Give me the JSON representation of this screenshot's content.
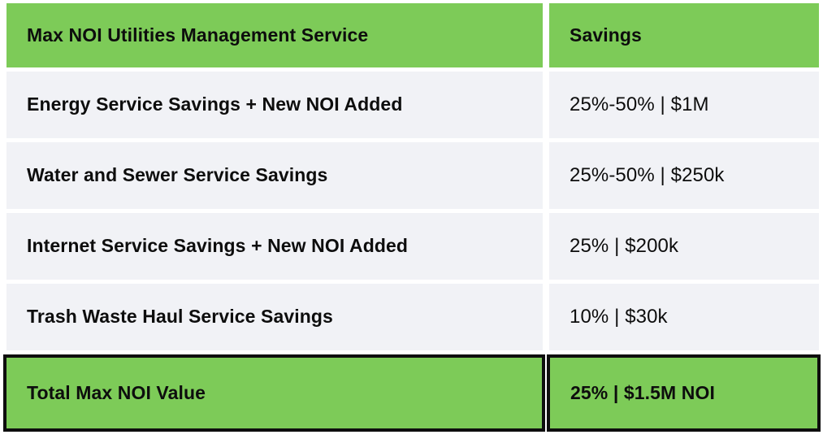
{
  "chart_data": {
    "type": "table",
    "title": "Max NOI Utilities Management Service",
    "columns": [
      "Max NOI Utilities Management Service",
      "Savings"
    ],
    "rows": [
      [
        "Energy Service Savings + New NOI Added",
        "25%-50% | $1M"
      ],
      [
        "Water and Sewer Service Savings",
        "25%-50% | $250k"
      ],
      [
        "Internet Service Savings + New NOI Added",
        "25% | $200k"
      ],
      [
        "Trash Waste Haul Service Savings",
        "10% | $30k"
      ]
    ],
    "total_row": [
      "Total Max NOI Value",
      "25% | $1.5M NOI"
    ],
    "layout_hints": {
      "header_style": "green-fill-bold",
      "total_row_style": "green-fill-bold-black-border",
      "body_row_style": "light-gray-fill",
      "grid": "white gaps between cells, no inner borders on body rows"
    }
  },
  "colors": {
    "green": "#7dcb58",
    "row_bg": "#f1f2f6",
    "text": "#0d0d0d",
    "border": "#0e0e0e",
    "background": "#ffffff"
  }
}
